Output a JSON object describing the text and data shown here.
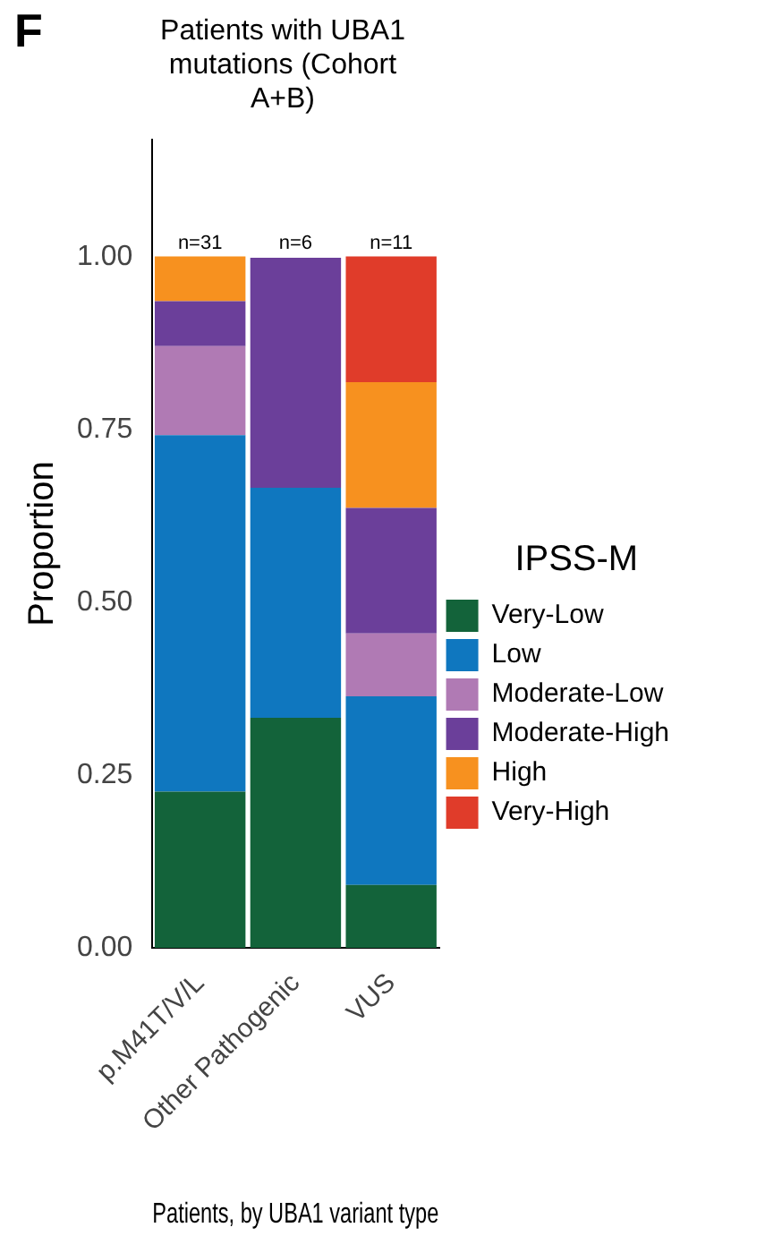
{
  "chart_data": {
    "type": "bar",
    "stacked": true,
    "title": "Patients with UBA1 mutations (Cohort A+B)",
    "xlabel": "Patients, by UBA1 variant type",
    "ylabel": "Proportion",
    "legend_title": "IPSS-M",
    "legend": "right",
    "grid": false,
    "categories": [
      "p.M41T/V/L",
      "Other Pathogenic",
      "VUS"
    ],
    "series": [
      {
        "name": "Very-Low",
        "color": "#13633a",
        "values": [
          0.226,
          0.333,
          0.091
        ]
      },
      {
        "name": "Low",
        "color": "#0f77bf",
        "values": [
          0.516,
          0.333,
          0.273
        ]
      },
      {
        "name": "Moderate-Low",
        "color": "#b07ab4",
        "values": [
          0.129,
          0,
          0.091
        ]
      },
      {
        "name": "Moderate-High",
        "color": "#6b3f9a",
        "values": [
          0.065,
          0.333,
          0.182
        ]
      },
      {
        "name": "High",
        "color": "#f7911f",
        "values": [
          0.065,
          0,
          0.182
        ]
      },
      {
        "name": "Very-High",
        "color": "#e03c2a",
        "values": [
          0,
          0,
          0.182
        ]
      }
    ],
    "ylim": [
      0,
      1.17
    ],
    "yticks": [
      {
        "value": 0,
        "label": "0.00"
      },
      {
        "value": 0.25,
        "label": "0.25"
      },
      {
        "value": 0.5,
        "label": "0.50"
      },
      {
        "value": 0.75,
        "label": "0.75"
      },
      {
        "value": 1,
        "label": "1.00"
      }
    ],
    "annotations": [
      "F",
      {
        "text": "n=31",
        "x": "p.M41T/V/L",
        "y": 1
      },
      {
        "text": "n=6",
        "x": "Other Pathogenic",
        "y": 1
      },
      {
        "text": "n=11",
        "x": "VUS",
        "y": 1
      }
    ]
  }
}
